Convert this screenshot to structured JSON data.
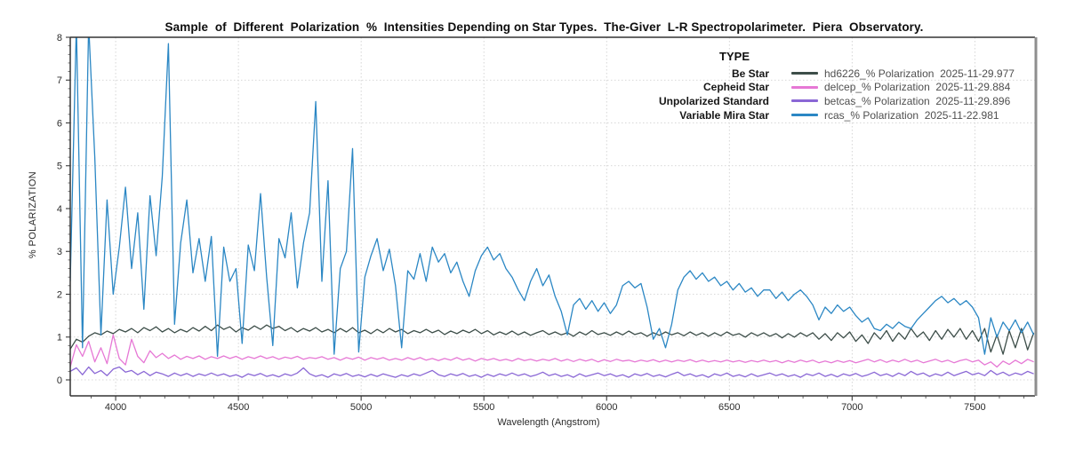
{
  "figure": {
    "background": "#ffffff"
  },
  "chart_data": {
    "type": "line",
    "title": "Sample  of  Different  Polarization  %  Intensities Depending on Star Types.  The-Giver  L-R Spectropolarimeter.  Piera  Observatory.",
    "xlabel": "Wavelength (Angstrom)",
    "ylabel": "% POLARIZATION",
    "x_range": [
      3815,
      7745
    ],
    "y_range": [
      0,
      8
    ],
    "x_ticks": [
      4000,
      4500,
      5000,
      5500,
      6000,
      6500,
      7000,
      7500
    ],
    "y_ticks": [
      0,
      1,
      2,
      3,
      4,
      5,
      6,
      7,
      8
    ],
    "x_minor_step": 100,
    "y_minor_step": 0.2,
    "grid": "dotted",
    "grid_color": "#cbcbcb",
    "spine_color": "#333333",
    "right_spine_color": "#8e8e8e",
    "legend": {
      "title": "TYPE",
      "position": "top-right"
    },
    "x_start": 3815,
    "x_step": 25,
    "series": [
      {
        "star_type": "Be Star",
        "label": "hd6226_% Polarization",
        "date": "2025-11-29.977",
        "color": "#3d4e49",
        "values": [
          0.72,
          0.95,
          0.88,
          1.02,
          1.1,
          1.05,
          1.14,
          1.08,
          1.18,
          1.12,
          1.2,
          1.1,
          1.22,
          1.15,
          1.24,
          1.12,
          1.2,
          1.1,
          1.18,
          1.12,
          1.22,
          1.14,
          1.25,
          1.15,
          1.28,
          1.18,
          1.24,
          1.12,
          1.22,
          1.16,
          1.26,
          1.18,
          1.28,
          1.2,
          1.25,
          1.15,
          1.22,
          1.12,
          1.2,
          1.14,
          1.22,
          1.12,
          1.18,
          1.1,
          1.2,
          1.12,
          1.22,
          1.1,
          1.16,
          1.08,
          1.18,
          1.1,
          1.2,
          1.12,
          1.18,
          1.08,
          1.15,
          1.1,
          1.18,
          1.1,
          1.16,
          1.06,
          1.14,
          1.08,
          1.16,
          1.1,
          1.18,
          1.08,
          1.15,
          1.05,
          1.12,
          1.06,
          1.14,
          1.05,
          1.12,
          1.04,
          1.1,
          1.15,
          1.06,
          1.12,
          1.05,
          1.1,
          1.02,
          1.12,
          1.05,
          1.15,
          1.06,
          1.1,
          1.04,
          1.12,
          1.05,
          1.14,
          1.06,
          1.1,
          1.02,
          1.1,
          1.04,
          1.12,
          1.05,
          1.1,
          1.03,
          1.12,
          1.04,
          1.1,
          1.02,
          1.1,
          1.03,
          1.12,
          1.04,
          1.08,
          1.0,
          1.1,
          1.03,
          1.1,
          1.02,
          1.08,
          0.98,
          1.08,
          1.0,
          1.1,
          1.02,
          1.1,
          0.95,
          1.08,
          0.92,
          1.1,
          0.98,
          1.12,
          0.9,
          1.05,
          0.85,
          1.1,
          0.95,
          1.15,
          0.9,
          1.1,
          0.95,
          1.2,
          1.0,
          1.12,
          0.92,
          1.15,
          0.95,
          1.18,
          1.0,
          1.2,
          0.95,
          1.15,
          0.9,
          1.2,
          0.65,
          1.05,
          0.6,
          1.15,
          0.75,
          1.2,
          0.7,
          1.1
        ]
      },
      {
        "star_type": "Cepheid Star",
        "label": "delcep_% Polarization",
        "date": "2025-11-29.884",
        "color": "#e678d5",
        "values": [
          0.3,
          0.82,
          0.55,
          0.9,
          0.42,
          0.75,
          0.38,
          1.05,
          0.5,
          0.35,
          0.95,
          0.55,
          0.4,
          0.68,
          0.52,
          0.62,
          0.5,
          0.58,
          0.48,
          0.55,
          0.5,
          0.56,
          0.48,
          0.54,
          0.5,
          0.56,
          0.5,
          0.55,
          0.48,
          0.54,
          0.5,
          0.56,
          0.5,
          0.54,
          0.48,
          0.53,
          0.5,
          0.55,
          0.48,
          0.52,
          0.5,
          0.54,
          0.48,
          0.52,
          0.46,
          0.52,
          0.48,
          0.53,
          0.46,
          0.52,
          0.48,
          0.52,
          0.46,
          0.5,
          0.46,
          0.52,
          0.47,
          0.52,
          0.46,
          0.5,
          0.45,
          0.5,
          0.46,
          0.52,
          0.46,
          0.5,
          0.44,
          0.5,
          0.46,
          0.5,
          0.45,
          0.48,
          0.44,
          0.5,
          0.45,
          0.48,
          0.44,
          0.48,
          0.45,
          0.5,
          0.44,
          0.48,
          0.43,
          0.48,
          0.44,
          0.48,
          0.42,
          0.47,
          0.43,
          0.48,
          0.44,
          0.46,
          0.42,
          0.46,
          0.43,
          0.47,
          0.42,
          0.46,
          0.42,
          0.46,
          0.43,
          0.47,
          0.42,
          0.46,
          0.42,
          0.45,
          0.42,
          0.46,
          0.42,
          0.45,
          0.41,
          0.45,
          0.42,
          0.46,
          0.42,
          0.45,
          0.4,
          0.45,
          0.41,
          0.46,
          0.42,
          0.46,
          0.4,
          0.44,
          0.4,
          0.45,
          0.41,
          0.45,
          0.4,
          0.44,
          0.48,
          0.42,
          0.47,
          0.41,
          0.46,
          0.42,
          0.48,
          0.42,
          0.46,
          0.4,
          0.44,
          0.48,
          0.42,
          0.46,
          0.4,
          0.45,
          0.48,
          0.42,
          0.46,
          0.35,
          0.42,
          0.3,
          0.44,
          0.36,
          0.46,
          0.38,
          0.48,
          0.42
        ]
      },
      {
        "star_type": "Unpolarized Standard",
        "label": "betcas_% Polarization",
        "date": "2025-11-29.896",
        "color": "#8a67d5",
        "values": [
          0.2,
          0.28,
          0.12,
          0.3,
          0.15,
          0.22,
          0.1,
          0.25,
          0.3,
          0.18,
          0.22,
          0.12,
          0.2,
          0.1,
          0.18,
          0.14,
          0.08,
          0.16,
          0.1,
          0.15,
          0.08,
          0.14,
          0.1,
          0.16,
          0.1,
          0.14,
          0.08,
          0.12,
          0.06,
          0.14,
          0.1,
          0.15,
          0.08,
          0.12,
          0.07,
          0.14,
          0.1,
          0.16,
          0.28,
          0.14,
          0.08,
          0.12,
          0.06,
          0.14,
          0.1,
          0.15,
          0.08,
          0.12,
          0.07,
          0.13,
          0.08,
          0.14,
          0.1,
          0.06,
          0.12,
          0.08,
          0.14,
          0.1,
          0.16,
          0.22,
          0.12,
          0.08,
          0.14,
          0.1,
          0.15,
          0.08,
          0.12,
          0.06,
          0.13,
          0.08,
          0.14,
          0.1,
          0.16,
          0.1,
          0.14,
          0.08,
          0.12,
          0.18,
          0.1,
          0.14,
          0.08,
          0.12,
          0.06,
          0.14,
          0.08,
          0.12,
          0.16,
          0.1,
          0.14,
          0.08,
          0.12,
          0.06,
          0.14,
          0.1,
          0.15,
          0.08,
          0.12,
          0.07,
          0.13,
          0.18,
          0.1,
          0.14,
          0.08,
          0.12,
          0.06,
          0.14,
          0.1,
          0.16,
          0.08,
          0.12,
          0.07,
          0.14,
          0.08,
          0.12,
          0.16,
          0.1,
          0.14,
          0.08,
          0.12,
          0.06,
          0.14,
          0.1,
          0.16,
          0.08,
          0.13,
          0.07,
          0.14,
          0.1,
          0.15,
          0.08,
          0.12,
          0.18,
          0.1,
          0.14,
          0.08,
          0.16,
          0.1,
          0.2,
          0.12,
          0.16,
          0.08,
          0.14,
          0.1,
          0.18,
          0.1,
          0.15,
          0.2,
          0.12,
          0.16,
          0.1,
          0.22,
          0.12,
          0.18,
          0.1,
          0.16,
          0.12,
          0.2,
          0.14
        ]
      },
      {
        "star_type": "Variable Mira Star",
        "label": "rcas_% Polarization",
        "date": "2025-11-22.981",
        "color": "#2b87c4",
        "values": [
          2.3,
          8.3,
          0.75,
          8.3,
          5.2,
          1.05,
          4.2,
          2.0,
          3.1,
          4.5,
          2.6,
          3.9,
          1.65,
          4.3,
          2.9,
          4.75,
          7.85,
          1.3,
          3.2,
          4.2,
          2.5,
          3.3,
          2.3,
          3.35,
          0.55,
          3.1,
          2.3,
          2.6,
          0.85,
          3.15,
          2.55,
          4.35,
          2.4,
          0.8,
          3.3,
          2.85,
          3.9,
          2.15,
          3.2,
          3.9,
          6.5,
          2.3,
          4.65,
          0.6,
          2.6,
          3.0,
          5.4,
          0.65,
          2.4,
          2.9,
          3.3,
          2.55,
          3.05,
          2.2,
          0.75,
          2.55,
          2.35,
          2.95,
          2.3,
          3.1,
          2.75,
          2.95,
          2.5,
          2.75,
          2.3,
          1.95,
          2.55,
          2.9,
          3.1,
          2.8,
          2.95,
          2.6,
          2.4,
          2.1,
          1.85,
          2.3,
          2.6,
          2.2,
          2.45,
          1.95,
          1.6,
          1.05,
          1.75,
          1.9,
          1.65,
          1.85,
          1.6,
          1.8,
          1.55,
          1.75,
          2.2,
          2.3,
          2.15,
          2.25,
          1.7,
          0.95,
          1.2,
          0.75,
          1.3,
          2.1,
          2.4,
          2.55,
          2.35,
          2.5,
          2.3,
          2.4,
          2.2,
          2.3,
          2.1,
          2.25,
          2.05,
          2.15,
          1.95,
          2.1,
          2.1,
          1.9,
          2.05,
          1.85,
          2.0,
          2.1,
          1.95,
          1.75,
          1.4,
          1.7,
          1.55,
          1.75,
          1.6,
          1.7,
          1.5,
          1.35,
          1.45,
          1.2,
          1.15,
          1.3,
          1.2,
          1.35,
          1.25,
          1.2,
          1.4,
          1.55,
          1.7,
          1.85,
          1.95,
          1.8,
          1.9,
          1.75,
          1.85,
          1.7,
          1.45,
          0.6,
          1.45,
          1.0,
          1.35,
          1.15,
          1.4,
          1.1,
          1.35,
          1.05
        ]
      }
    ]
  }
}
